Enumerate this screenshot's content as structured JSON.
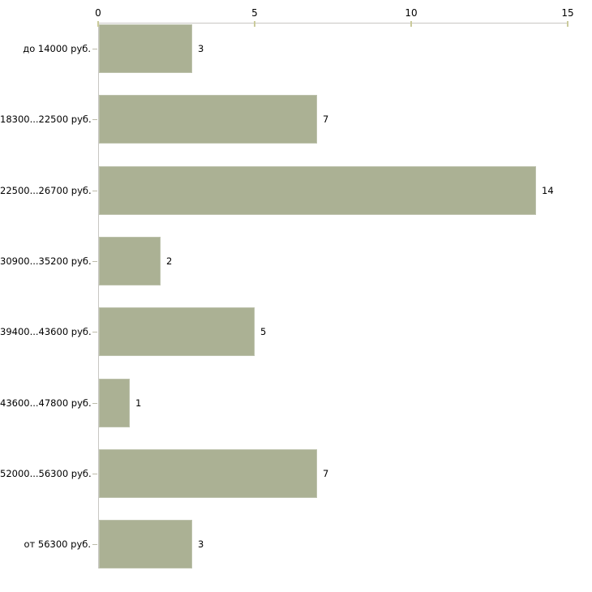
{
  "chart_data": {
    "type": "bar",
    "orientation": "horizontal",
    "title": "",
    "xlabel": "",
    "ylabel": "",
    "categories": [
      "до 14000 руб.",
      "18300...22500 руб.",
      "22500...26700 руб.",
      "30900...35200 руб.",
      "39400...43600 руб.",
      "43600...47800 руб.",
      "52000...56300 руб.",
      "от 56300 руб."
    ],
    "values": [
      3,
      7,
      14,
      2,
      5,
      1,
      7,
      3
    ],
    "x_ticks": [
      "0",
      "5",
      "10",
      "15"
    ],
    "x_tick_values": [
      0,
      5,
      10,
      15
    ],
    "xlim": [
      0,
      15
    ],
    "grid": false,
    "legend": "none",
    "value_labels_shown": true,
    "colors": {
      "background": "#ffffff",
      "bar_fill": "#abb194",
      "bar_edge": "#bcc1ab",
      "axis_line": "#c8c7c3",
      "axis_tick": "#cbcb9b",
      "category_tick": "#bdbcab",
      "text": "#000000"
    }
  }
}
